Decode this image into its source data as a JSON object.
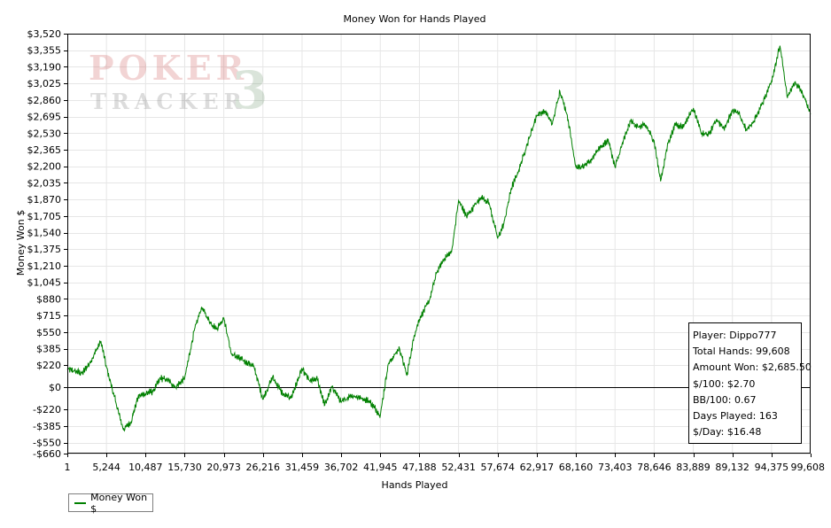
{
  "chart_data": {
    "type": "line",
    "title": "Money Won for Hands Played",
    "xlabel": "Hands Played",
    "ylabel": "Money Won $",
    "xlim": [
      1,
      99608
    ],
    "ylim": [
      -660,
      3520
    ],
    "grid": true,
    "legend_position": "bottom-left",
    "x_tick_labels": [
      "1",
      "5,244",
      "10,487",
      "15,730",
      "20,973",
      "26,216",
      "31,459",
      "36,702",
      "41,945",
      "47,188",
      "52,431",
      "57,674",
      "62,917",
      "68,160",
      "73,403",
      "78,646",
      "83,889",
      "89,132",
      "94,375",
      "99,608"
    ],
    "y_ticks": [
      -660,
      -550,
      -385,
      -220,
      0,
      220,
      385,
      550,
      715,
      880,
      1045,
      1210,
      1375,
      1540,
      1705,
      1870,
      2035,
      2200,
      2365,
      2530,
      2695,
      2860,
      3025,
      3190,
      3355,
      3520
    ],
    "y_tick_labels": [
      "-$660",
      "-$550",
      "-$385",
      "-$220",
      "$0",
      "$220",
      "$385",
      "$550",
      "$715",
      "$880",
      "$1,045",
      "$1,210",
      "$1,375",
      "$1,540",
      "$1,705",
      "$1,870",
      "$2,035",
      "$2,200",
      "$2,365",
      "$2,530",
      "$2,695",
      "$2,860",
      "$3,025",
      "$3,190",
      "$3,355",
      "$3,520"
    ],
    "series": [
      {
        "name": "Money Won $",
        "color": "#008000",
        "x": [
          1,
          2000,
          3000,
          4500,
          5244,
          6500,
          7500,
          8500,
          9500,
          10487,
          11500,
          12500,
          13500,
          14500,
          15730,
          17000,
          18000,
          19000,
          20000,
          20973,
          22000,
          23500,
          25000,
          26216,
          27500,
          29000,
          30000,
          31459,
          32500,
          33500,
          34500,
          35500,
          36702,
          38000,
          39500,
          40500,
          41945,
          43000,
          44500,
          45500,
          46500,
          47188,
          48500,
          49500,
          50500,
          51500,
          52431,
          53500,
          54500,
          55500,
          56500,
          57674,
          58500,
          59500,
          60500,
          61500,
          62917,
          64000,
          65000,
          66000,
          67000,
          68160,
          69000,
          70000,
          71000,
          72500,
          73403,
          74500,
          75500,
          76500,
          77500,
          78646,
          79500,
          80500,
          81500,
          82500,
          83889,
          85000,
          86000,
          87000,
          88000,
          89132,
          90000,
          91000,
          92000,
          93000,
          94375,
          95500,
          96500,
          97500,
          98500,
          99608
        ],
        "values": [
          180,
          140,
          240,
          460,
          200,
          -150,
          -420,
          -350,
          -90,
          -60,
          -40,
          90,
          70,
          0,
          90,
          560,
          800,
          660,
          580,
          690,
          330,
          270,
          210,
          -120,
          100,
          -80,
          -100,
          180,
          60,
          80,
          -180,
          10,
          -150,
          -80,
          -110,
          -140,
          -280,
          230,
          390,
          120,
          520,
          680,
          860,
          1140,
          1280,
          1350,
          1860,
          1700,
          1800,
          1890,
          1840,
          1480,
          1630,
          1980,
          2160,
          2390,
          2710,
          2750,
          2620,
          2950,
          2710,
          2190,
          2190,
          2240,
          2360,
          2460,
          2190,
          2450,
          2650,
          2590,
          2610,
          2450,
          2050,
          2430,
          2620,
          2590,
          2780,
          2520,
          2520,
          2670,
          2570,
          2760,
          2720,
          2560,
          2650,
          2800,
          3050,
          3400,
          2880,
          3040,
          2930,
          2720
        ]
      }
    ]
  },
  "legend": {
    "label": "Money Won $"
  },
  "stats": {
    "player": "Player: Dippo777",
    "total_hands": "Total Hands: 99,608",
    "amount_won": "Amount Won: $2,685.50",
    "per_100": "$/100: $2.70",
    "bb_100": "BB/100: 0.67",
    "days_played": "Days Played: 163",
    "per_day": "$/Day: $16.48"
  }
}
